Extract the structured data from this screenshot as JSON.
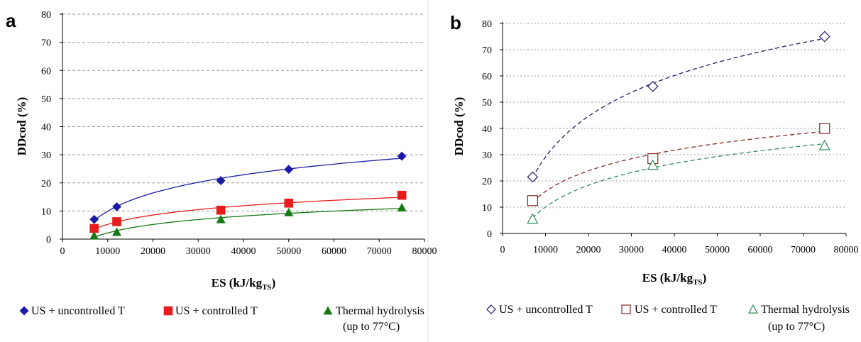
{
  "panels": [
    {
      "letter": "a",
      "chart_data": {
        "type": "scatter",
        "fit": "logarithmic trendline",
        "xlabel": "ES (kJ/kg",
        "xlabel_sub": "TS",
        "xlabel_end": ")",
        "ylabel": "DDcod (%)",
        "xlim": [
          0,
          80000
        ],
        "ylim": [
          0,
          80
        ],
        "x_ticks": [
          0,
          10000,
          20000,
          30000,
          40000,
          50000,
          60000,
          70000,
          80000
        ],
        "y_ticks": [
          0,
          10,
          20,
          30,
          40,
          50,
          60,
          70,
          80
        ],
        "grid": "horizontal dashed",
        "legend_position": "bottom",
        "series": [
          {
            "name": "US + uncontrolled T",
            "marker": "diamond-filled",
            "color": "#1a1aa6",
            "x": [
              7000,
              12000,
              35000,
              50000,
              75000
            ],
            "y": [
              7,
              11.5,
              20.8,
              24.8,
              29.5
            ]
          },
          {
            "name": "US + controlled T",
            "marker": "square-filled",
            "color": "#e81c1c",
            "x": [
              7000,
              12000,
              35000,
              50000,
              75000
            ],
            "y": [
              3.8,
              6.2,
              10.3,
              12.8,
              15.6
            ]
          },
          {
            "name": "Thermal hydrolysis",
            "name2": "(up to 77°C)",
            "marker": "triangle-filled",
            "color": "#157a15",
            "x": [
              7000,
              12000,
              35000,
              50000,
              75000
            ],
            "y": [
              1.2,
              2.5,
              7,
              9.5,
              11.2
            ]
          }
        ]
      }
    },
    {
      "letter": "b",
      "chart_data": {
        "type": "scatter",
        "fit": "logarithmic trendline",
        "xlabel": "ES (kJ/kg",
        "xlabel_sub": "TS",
        "xlabel_end": ")",
        "ylabel": "DDcod (%)",
        "xlim": [
          0,
          80000
        ],
        "ylim": [
          0,
          80
        ],
        "x_ticks": [
          0,
          10000,
          20000,
          30000,
          40000,
          50000,
          60000,
          70000,
          80000
        ],
        "y_ticks": [
          0,
          10,
          20,
          30,
          40,
          50,
          60,
          70,
          80
        ],
        "grid": "horizontal dotted",
        "legend_position": "bottom",
        "series": [
          {
            "name": "US + uncontrolled T",
            "marker": "diamond-open",
            "color": "#1c1c66",
            "x": [
              7000,
              35000,
              75000
            ],
            "y": [
              21.5,
              56,
              75
            ]
          },
          {
            "name": "US + controlled T",
            "marker": "square-open",
            "color": "#8b2a2a",
            "x": [
              7000,
              35000,
              75000
            ],
            "y": [
              12.5,
              28.5,
              40
            ]
          },
          {
            "name": "Thermal hydrolysis",
            "name2": "(up to 77°C)",
            "marker": "triangle-open",
            "color": "#2e8b57",
            "x": [
              7000,
              35000,
              75000
            ],
            "y": [
              5.5,
              26,
              33.5
            ]
          }
        ]
      }
    }
  ]
}
